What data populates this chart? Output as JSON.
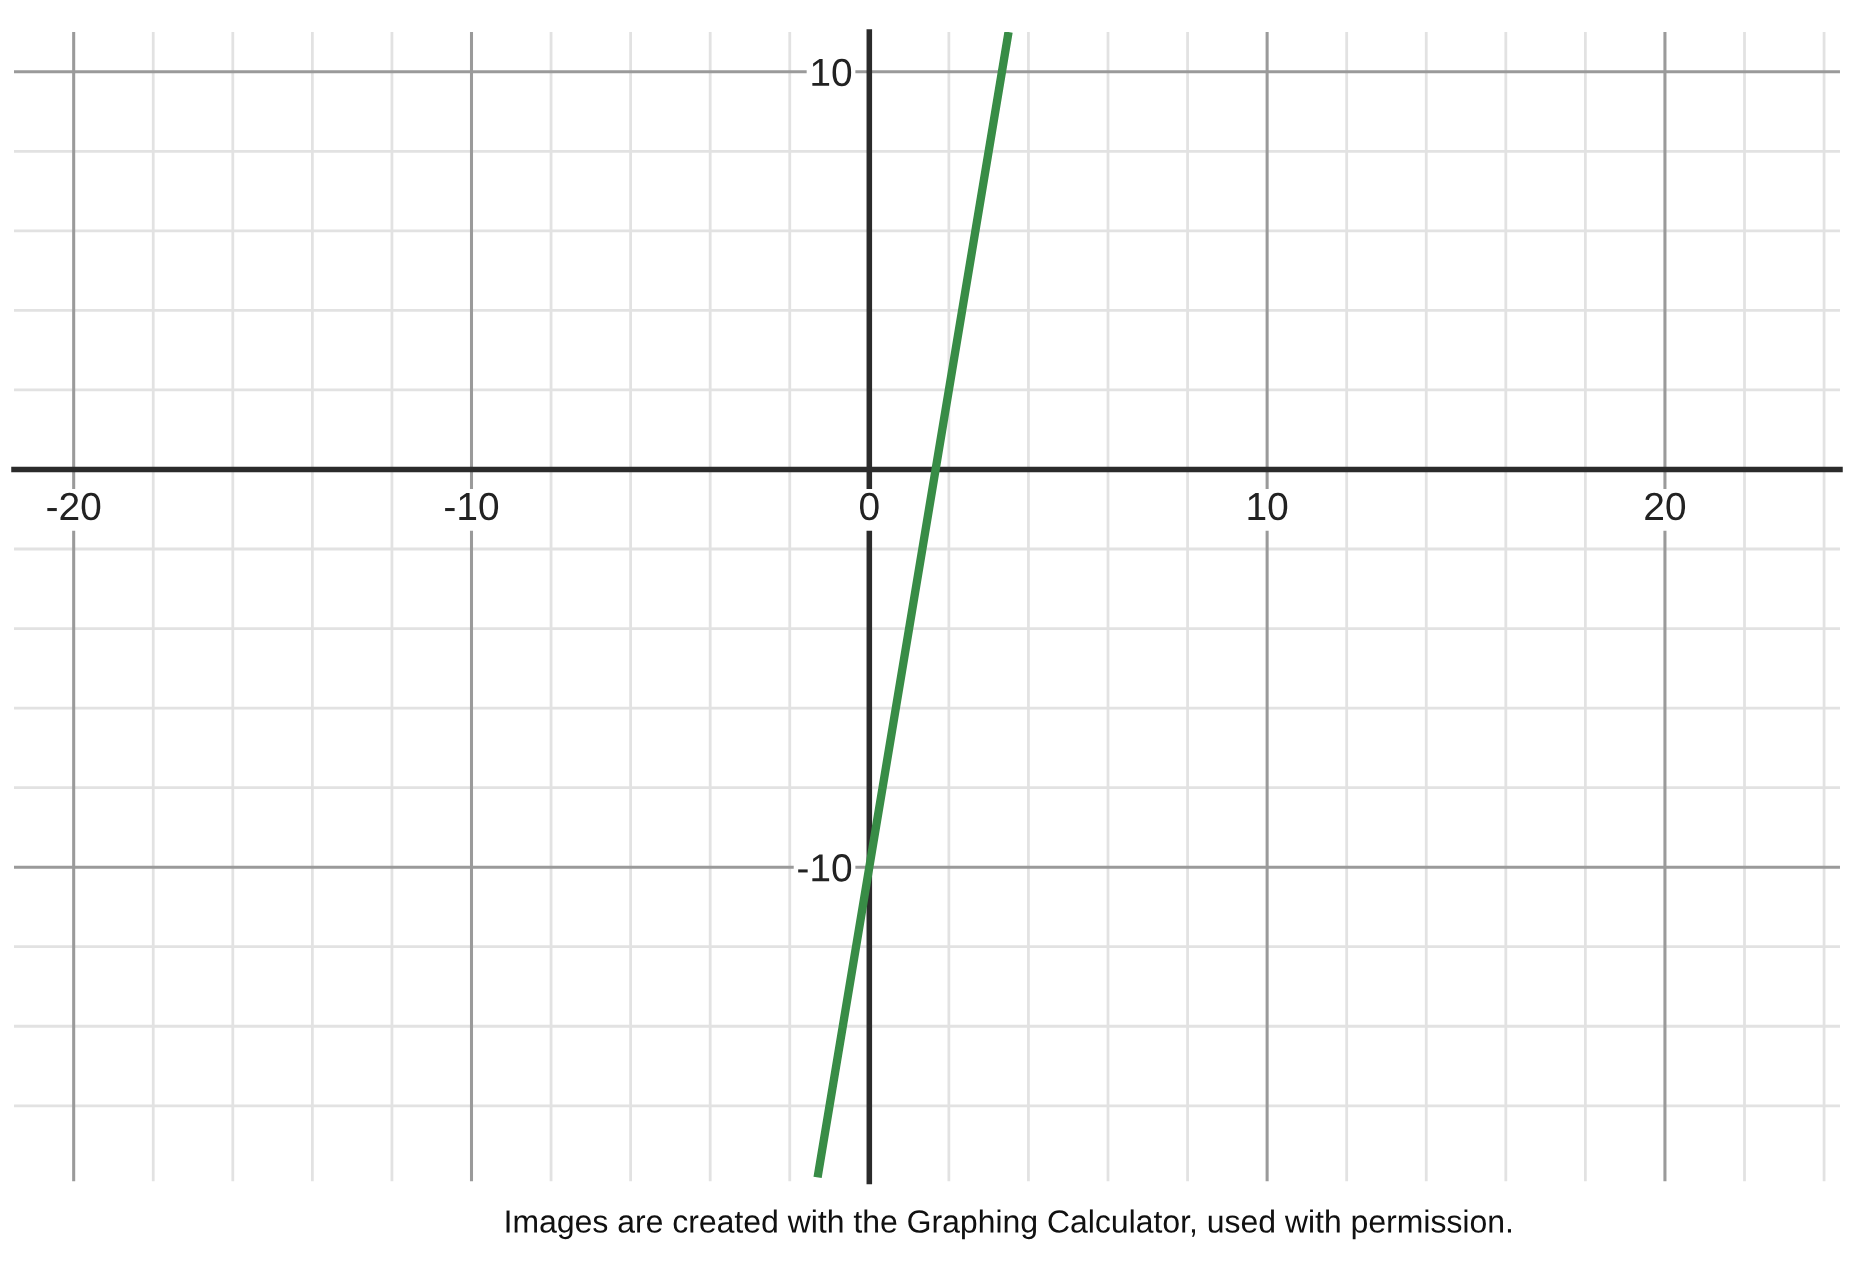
{
  "chart_data": {
    "type": "line",
    "x": [
      -1.3,
      0,
      3.5
    ],
    "series": [
      {
        "color": "#388c46",
        "values": [
          -17.8,
          -10,
          11
        ]
      }
    ],
    "xlim": [
      -21.5,
      24.4
    ],
    "ylim": [
      -17.9,
      11.0
    ],
    "xticks": [
      -20,
      {
        "value": -18,
        "label": null
      },
      {
        "value": -16,
        "label": null
      },
      {
        "value": -14,
        "label": null
      },
      {
        "value": -12,
        "label": null
      },
      -10,
      {
        "value": -8,
        "label": null
      },
      {
        "value": -6,
        "label": null
      },
      {
        "value": -4,
        "label": null
      },
      {
        "value": -2,
        "label": null
      },
      0,
      {
        "value": 2,
        "label": null
      },
      {
        "value": 4,
        "label": null
      },
      {
        "value": 6,
        "label": null
      },
      {
        "value": 8,
        "label": null
      },
      10,
      {
        "value": 12,
        "label": null
      },
      {
        "value": 14,
        "label": null
      },
      {
        "value": 16,
        "label": null
      },
      {
        "value": 18,
        "label": null
      },
      20,
      {
        "value": 22,
        "label": null
      },
      {
        "value": 24,
        "label": null
      }
    ],
    "yticks": [
      {
        "value": -16,
        "label": null
      },
      {
        "value": -14,
        "label": null
      },
      {
        "value": -12,
        "label": null
      },
      -10,
      {
        "value": -8,
        "label": null
      },
      {
        "value": -6,
        "label": null
      },
      {
        "value": -4,
        "label": null
      },
      {
        "value": -2,
        "label": null
      },
      {
        "value": 0,
        "label": null
      },
      {
        "value": 2,
        "label": null
      },
      {
        "value": 4,
        "label": null
      },
      {
        "value": 6,
        "label": null
      },
      {
        "value": 8,
        "label": null
      },
      10
    ],
    "grid": true,
    "annotations": [
      "Images are created with the Graphing Calculator, used with permission."
    ]
  }
}
